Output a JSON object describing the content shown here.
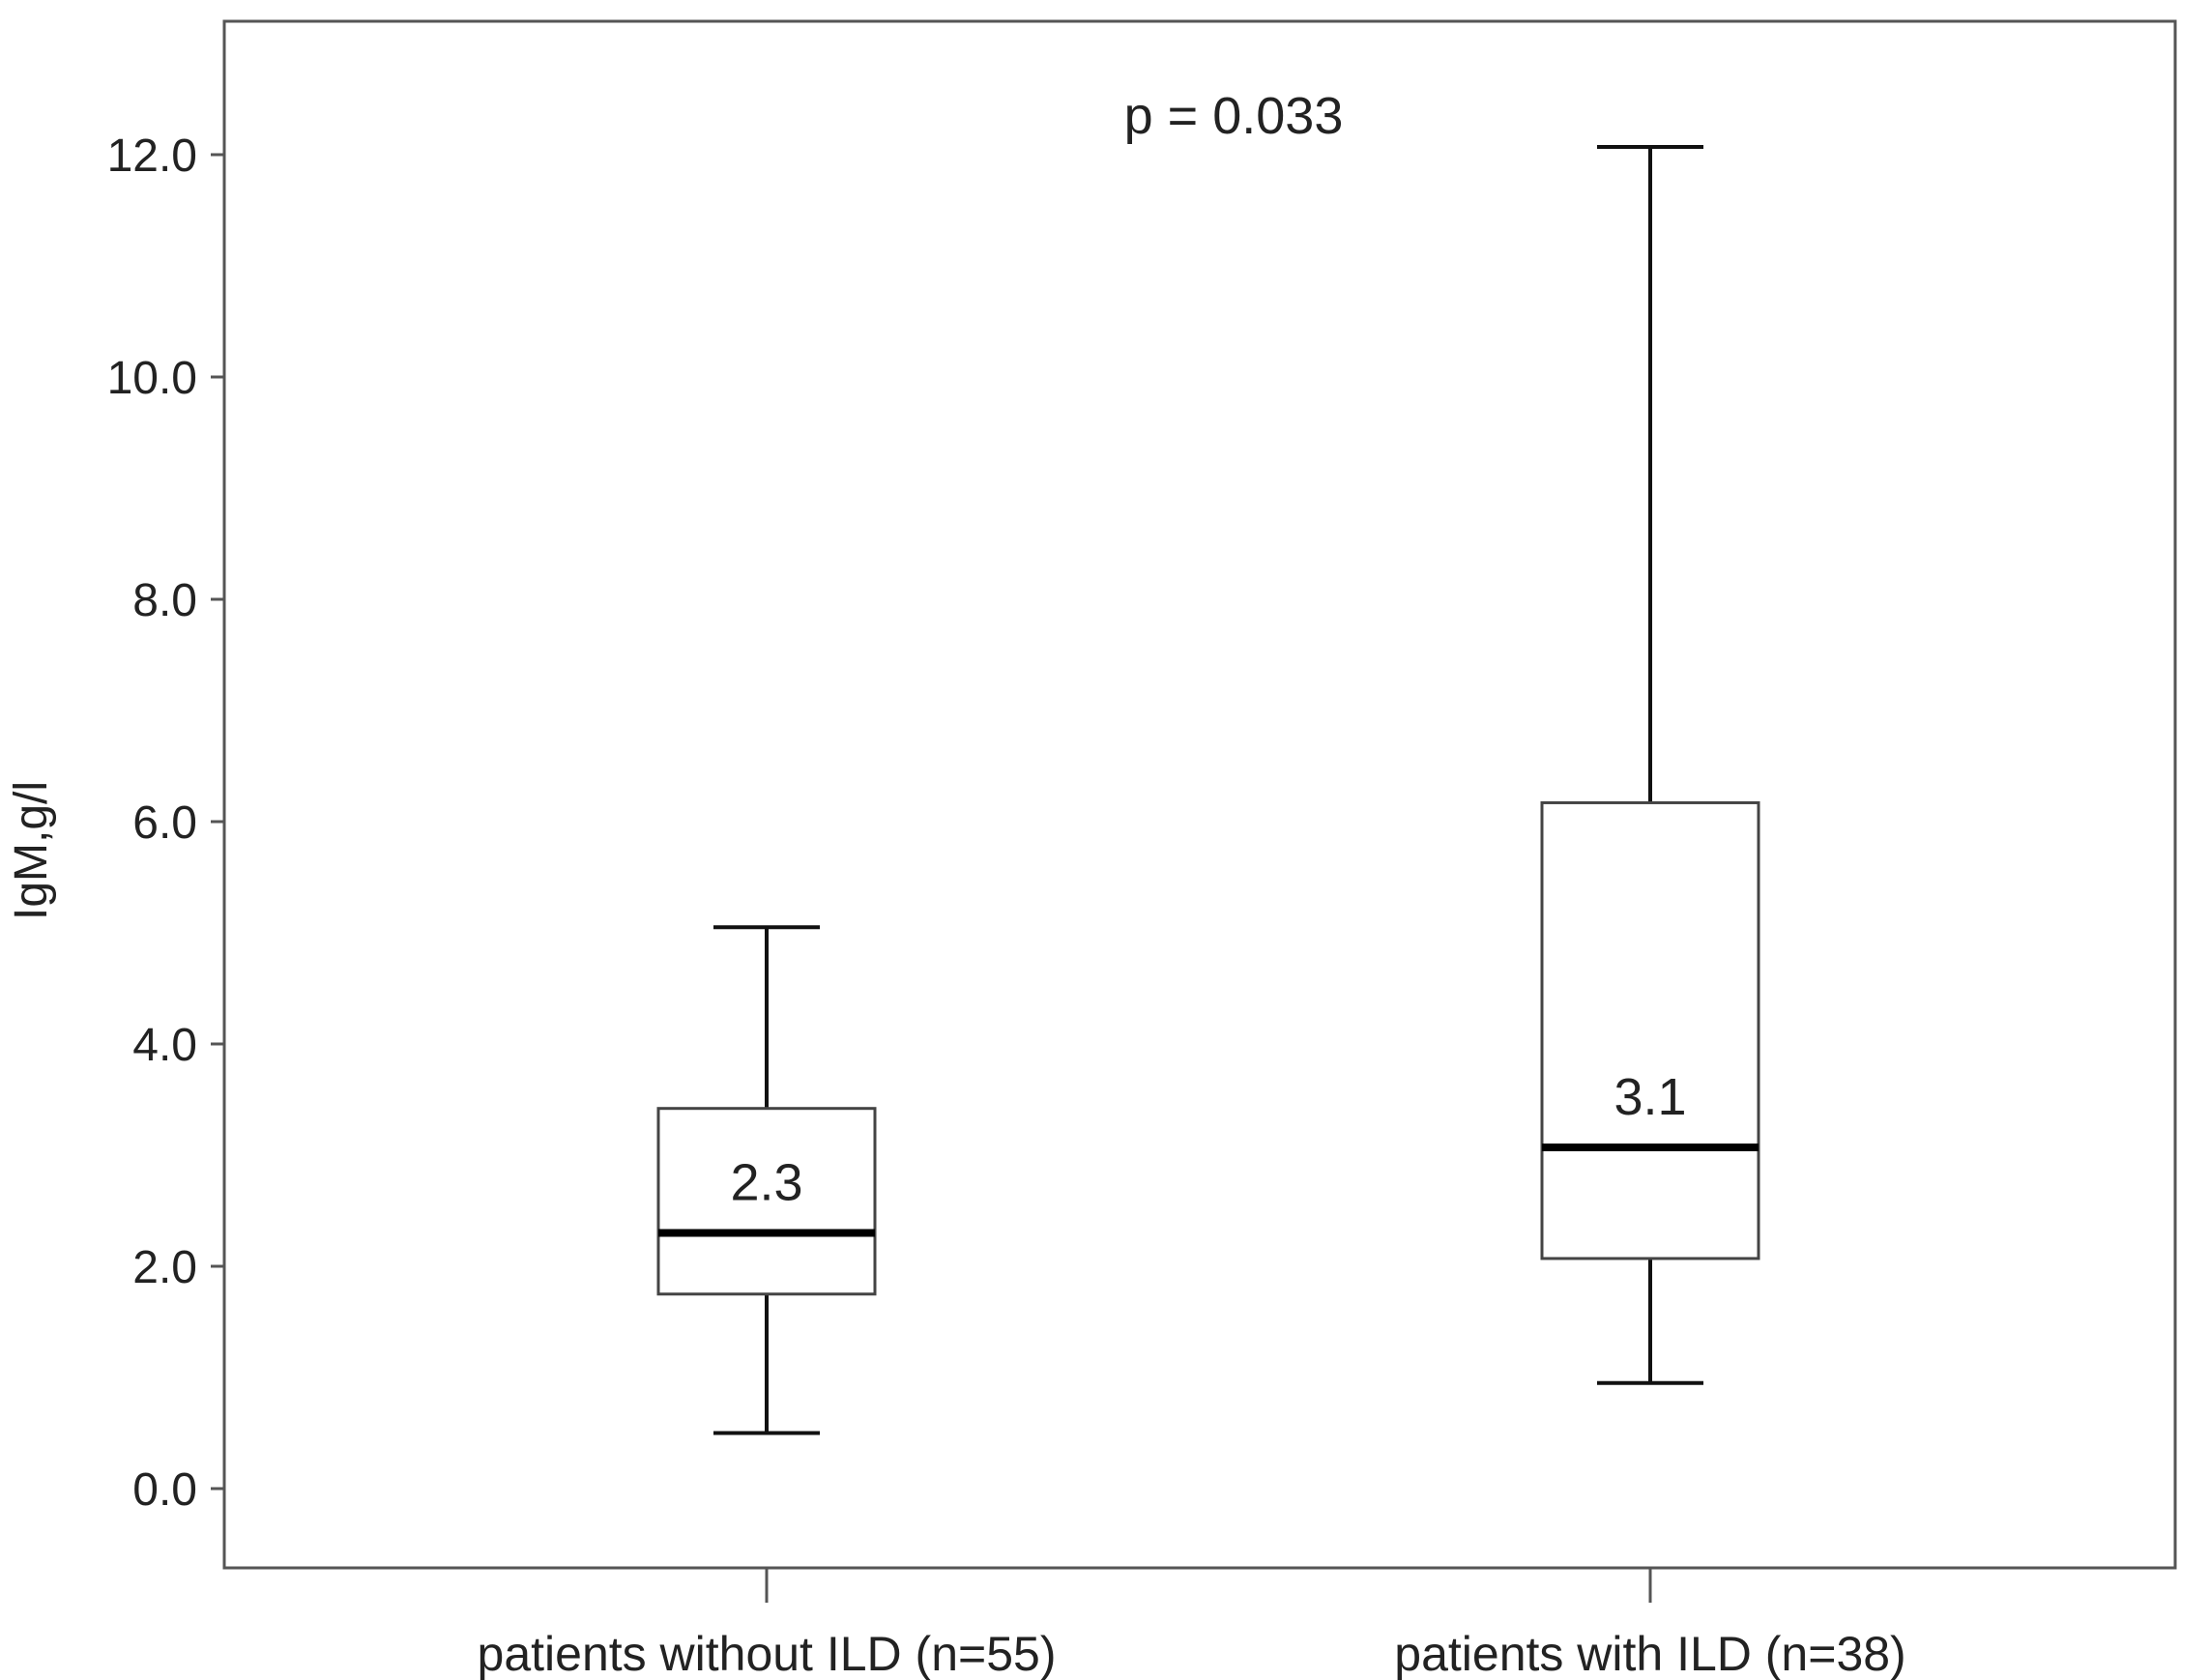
{
  "chart_data": {
    "type": "box",
    "ylabel": "IgM,g/l",
    "ylim": [
      -0.7,
      13.0
    ],
    "yticks": [
      "0.0",
      "2.0",
      "4.0",
      "6.0",
      "8.0",
      "10.0",
      "12.0"
    ],
    "ytick_values": [
      0,
      2,
      4,
      6,
      8,
      10,
      12
    ],
    "annotation": "p = 0.033",
    "grid": false,
    "categories": [
      "patients without ILD (n=55)",
      "patients with ILD (n=38)"
    ],
    "boxes": [
      {
        "whisker_low": 0.5,
        "q1": 1.75,
        "median": 2.3,
        "q3": 3.42,
        "whisker_high": 5.05,
        "median_label": "2.3"
      },
      {
        "whisker_low": 0.95,
        "q1": 2.07,
        "median": 3.07,
        "q3": 6.17,
        "whisker_high": 12.07,
        "median_label": "3.1"
      }
    ],
    "colors": {
      "line": "#111111",
      "frame": "#555555",
      "box_fill": "#ffffff"
    }
  }
}
